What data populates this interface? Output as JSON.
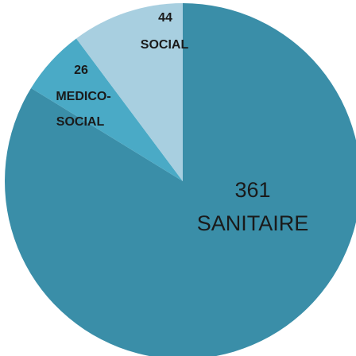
{
  "chart_data": {
    "type": "pie",
    "title": "",
    "slices": [
      {
        "value": 361,
        "label": "SANITAIRE",
        "color": "#3a8ea8"
      },
      {
        "value": 26,
        "label": "MEDICO-\nSOCIAL",
        "color": "#4aaac6"
      },
      {
        "value": 44,
        "label": "SOCIAL",
        "color": "#a8cfe0"
      }
    ],
    "data_labels": {
      "sanitaire": {
        "value": "361",
        "name": "SANITAIRE"
      },
      "medico": {
        "value": "26",
        "name1": "MEDICO-",
        "name2": "SOCIAL"
      },
      "social": {
        "value": "44",
        "name": "SOCIAL"
      }
    }
  }
}
